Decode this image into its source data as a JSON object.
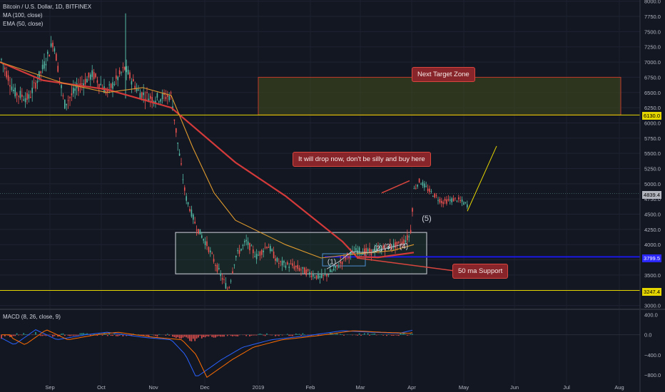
{
  "header": {
    "symbol_line": "Bitcoin / U.S. Dollar, 1D, BITFINEX",
    "ma_line": "MA (100, close)",
    "ema_line": "EMA (50, close)",
    "macd_line": "MACD (8, 26, close, 9)"
  },
  "annotations": {
    "target_zone": "Next Target Zone",
    "drop_warning": "It will drop now, don't be silly and buy here",
    "support_label": "50 ma Support"
  },
  "wave_labels": [
    "(1)",
    "(2)",
    "(3)",
    "(4)",
    "(5)"
  ],
  "price_tags": {
    "top_level": "6130.0",
    "current": "4839.4",
    "support": "3799.5",
    "bottom_level": "3247.4"
  },
  "colors": {
    "background": "#131722",
    "bull": "#53b9a4",
    "bear": "#ef5350",
    "ma100": "#d43a3a",
    "ema50": "#e09b2d",
    "level_line": "#e6d600",
    "support_line": "#1a18e6",
    "zone_fill": "#3f4a1e",
    "zone_border": "#c0392b"
  },
  "chart_data": {
    "type": "candlestick",
    "title": "Bitcoin / U.S. Dollar, 1D, BITFINEX",
    "price_axis": {
      "ticks": [
        3000,
        3250,
        3500,
        3750,
        4000,
        4250,
        4500,
        4750,
        5000,
        5250,
        5500,
        5750,
        6000,
        6250,
        6500,
        6750,
        7000,
        7250,
        7500,
        7750,
        8000
      ],
      "range": [
        2960,
        8020
      ]
    },
    "macd_axis": {
      "ticks": [
        "400.0",
        "0.0",
        "−400.0",
        "−800.0"
      ],
      "values": [
        400,
        0,
        -400,
        -800
      ],
      "range": [
        -1000,
        450
      ]
    },
    "time_axis": {
      "labels": [
        "Sep",
        "Oct",
        "Nov",
        "Dec",
        "2019",
        "Feb",
        "Mar",
        "Apr",
        "May",
        "Jun",
        "Jul",
        "Aug"
      ]
    },
    "series": [
      {
        "name": "MA (100, close)",
        "anchors": [
          [
            0,
            7000
          ],
          [
            60,
            6700
          ],
          [
            150,
            6550
          ],
          [
            240,
            6250
          ],
          [
            270,
            5950
          ],
          [
            330,
            5350
          ],
          [
            400,
            4800
          ],
          [
            480,
            4050
          ],
          [
            500,
            3800
          ],
          [
            530,
            3790
          ],
          [
            580,
            3870
          ]
        ]
      },
      {
        "name": "EMA (50, close)",
        "anchors": [
          [
            0,
            7000
          ],
          [
            90,
            6650
          ],
          [
            150,
            6500
          ],
          [
            200,
            6580
          ],
          [
            240,
            6450
          ],
          [
            270,
            5600
          ],
          [
            300,
            4850
          ],
          [
            330,
            4400
          ],
          [
            400,
            4000
          ],
          [
            450,
            3780
          ],
          [
            500,
            3850
          ],
          [
            550,
            3900
          ],
          [
            580,
            4000
          ]
        ]
      }
    ],
    "levels": [
      {
        "name": "top level",
        "value": 6130
      },
      {
        "name": "support",
        "value": 3799.5
      },
      {
        "name": "bottom level",
        "value": 3247.4
      },
      {
        "name": "current",
        "value": 4839.4
      }
    ],
    "zones": [
      {
        "name": "Next Target Zone",
        "from": 6130,
        "to": 6750
      },
      {
        "name": "consolidation box",
        "from": 3520,
        "to": 4200
      }
    ]
  }
}
